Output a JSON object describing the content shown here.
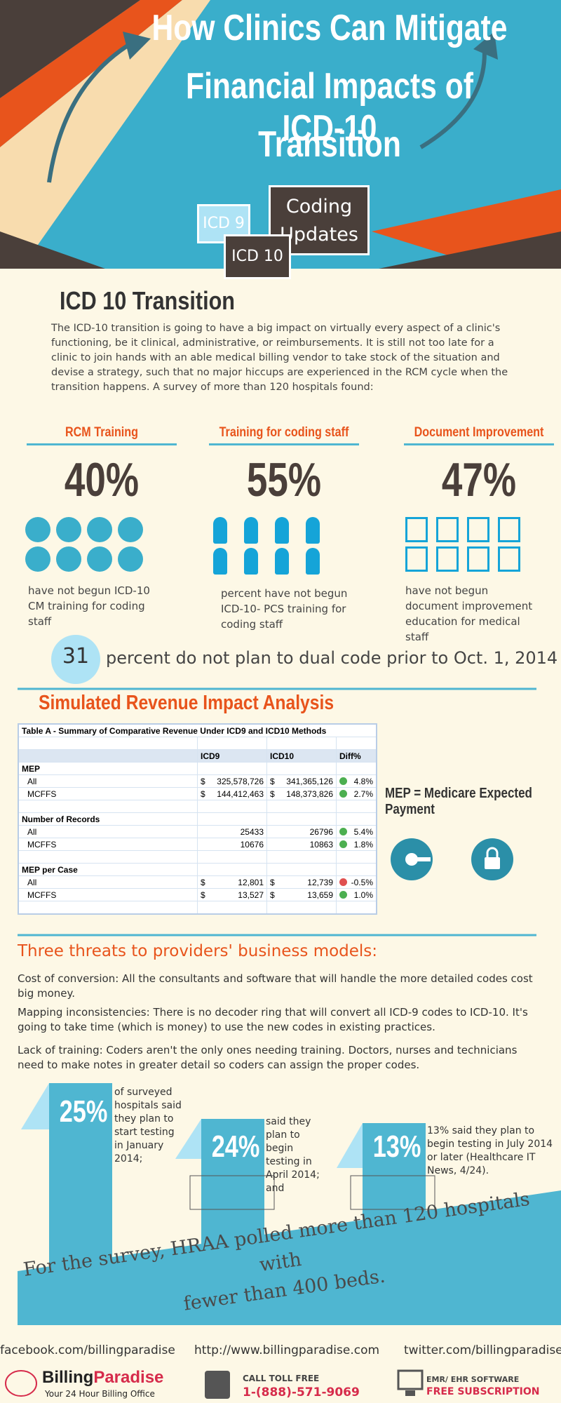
{
  "header": {
    "title_lines": [
      "How Clinics Can Mitigate",
      "Financial Impacts of ICD-10",
      "Transition"
    ],
    "badges": {
      "icd9": "ICD 9",
      "icd10": "ICD 10",
      "coding": "Coding",
      "updates": "Updates"
    }
  },
  "intro": {
    "heading": "ICD 10 Transition",
    "text": "The ICD-10 transition is going to have a big impact on virtually every aspect of a clinic's functioning, be it clinical, administrative, or reimbursements. It is still not too late for a clinic to join hands with an able medical billing vendor to take stock of the situation and devise a strategy, such that no major hiccups are experienced in the RCM cycle when the transition happens. A survey of more than 120 hospitals found:"
  },
  "stats": [
    {
      "title": "RCM Training",
      "value": "40%",
      "caption": "have not begun ICD-10 CM training for coding staff"
    },
    {
      "title": "Training for coding staff",
      "value": "55%",
      "caption": "percent have not begun ICD-10- PCS training for coding staff"
    },
    {
      "title": "Document Improvement",
      "value": "47%",
      "caption": "have not begun document improvement education for medical staff"
    }
  ],
  "dual_code": {
    "number": "31",
    "text": "percent do not plan to dual code prior to Oct. 1, 2014"
  },
  "revenue": {
    "heading": "Simulated Revenue Impact Analysis",
    "table_title": "Table A - Summary of Comparative Revenue Under ICD9 and ICD10 Methods",
    "columns": [
      "ICD9",
      "ICD10",
      "Diff%"
    ],
    "groups": [
      {
        "name": "MEP",
        "currency": "$",
        "rows": [
          {
            "label": "All",
            "icd9": "325,578,726",
            "icd10": "341,365,126",
            "diff": "4.8%",
            "dot": "#4caf50"
          },
          {
            "label": "MCFFS",
            "icd9": "144,412,463",
            "icd10": "148,373,826",
            "diff": "2.7%",
            "dot": "#4caf50"
          }
        ]
      },
      {
        "name": "Number of Records",
        "rows": [
          {
            "label": "All",
            "icd9": "25433",
            "icd10": "26796",
            "diff": "5.4%",
            "dot": "#4caf50"
          },
          {
            "label": "MCFFS",
            "icd9": "10676",
            "icd10": "10863",
            "diff": "1.8%",
            "dot": "#4caf50"
          }
        ]
      },
      {
        "name": "MEP per Case",
        "currency": "$",
        "rows": [
          {
            "label": "All",
            "icd9": "12,801",
            "icd10": "12,739",
            "diff": "-0.5%",
            "dot": "#e05050"
          },
          {
            "label": "MCFFS",
            "icd9": "13,527",
            "icd10": "13,659",
            "diff": "1.0%",
            "dot": "#4caf50"
          }
        ]
      }
    ],
    "note": "MEP = Medicare Expected Payment"
  },
  "threats": {
    "heading": "Three threats to providers' business models:",
    "items": [
      "Cost of conversion: All the consultants and software that will handle the more detailed codes cost big money.",
      "Mapping inconsistencies: There is no decoder ring that will convert all ICD-9 codes to ICD-10. It's going to take time (which is money) to use the new codes in existing practices.",
      "Lack of training: Coders aren't the only ones needing training. Doctors, nurses and technicians need to make notes in greater detail so coders can assign the proper codes."
    ]
  },
  "testing": {
    "items": [
      {
        "value": "25%",
        "text": "of surveyed hospitals said they plan to start testing in January 2014;"
      },
      {
        "value": "24%",
        "text": "said they plan to begin testing in April 2014; and"
      },
      {
        "value": "13%",
        "text": "13% said they plan to begin testing in July 2014 or later (Healthcare IT News, 4/24)."
      }
    ],
    "survey_lines": [
      "For the survey, HRAA polled more than 120 hospitals with",
      "fewer than 400 beds."
    ]
  },
  "footer": {
    "facebook": "facebook.com/billingparadise",
    "website": "http://www.billingparadise.com",
    "twitter": "twitter.com/billingparadise",
    "brand_first": "Billing",
    "brand_second": "Paradise",
    "tagline": "Your 24 Hour Billing Office",
    "call_label": "CALL TOLL FREE",
    "phone": "1-(888)-571-9069",
    "emr_label": "EMR/ EHR SOFTWARE",
    "subscription": "FREE SUBSCRIPTION"
  }
}
